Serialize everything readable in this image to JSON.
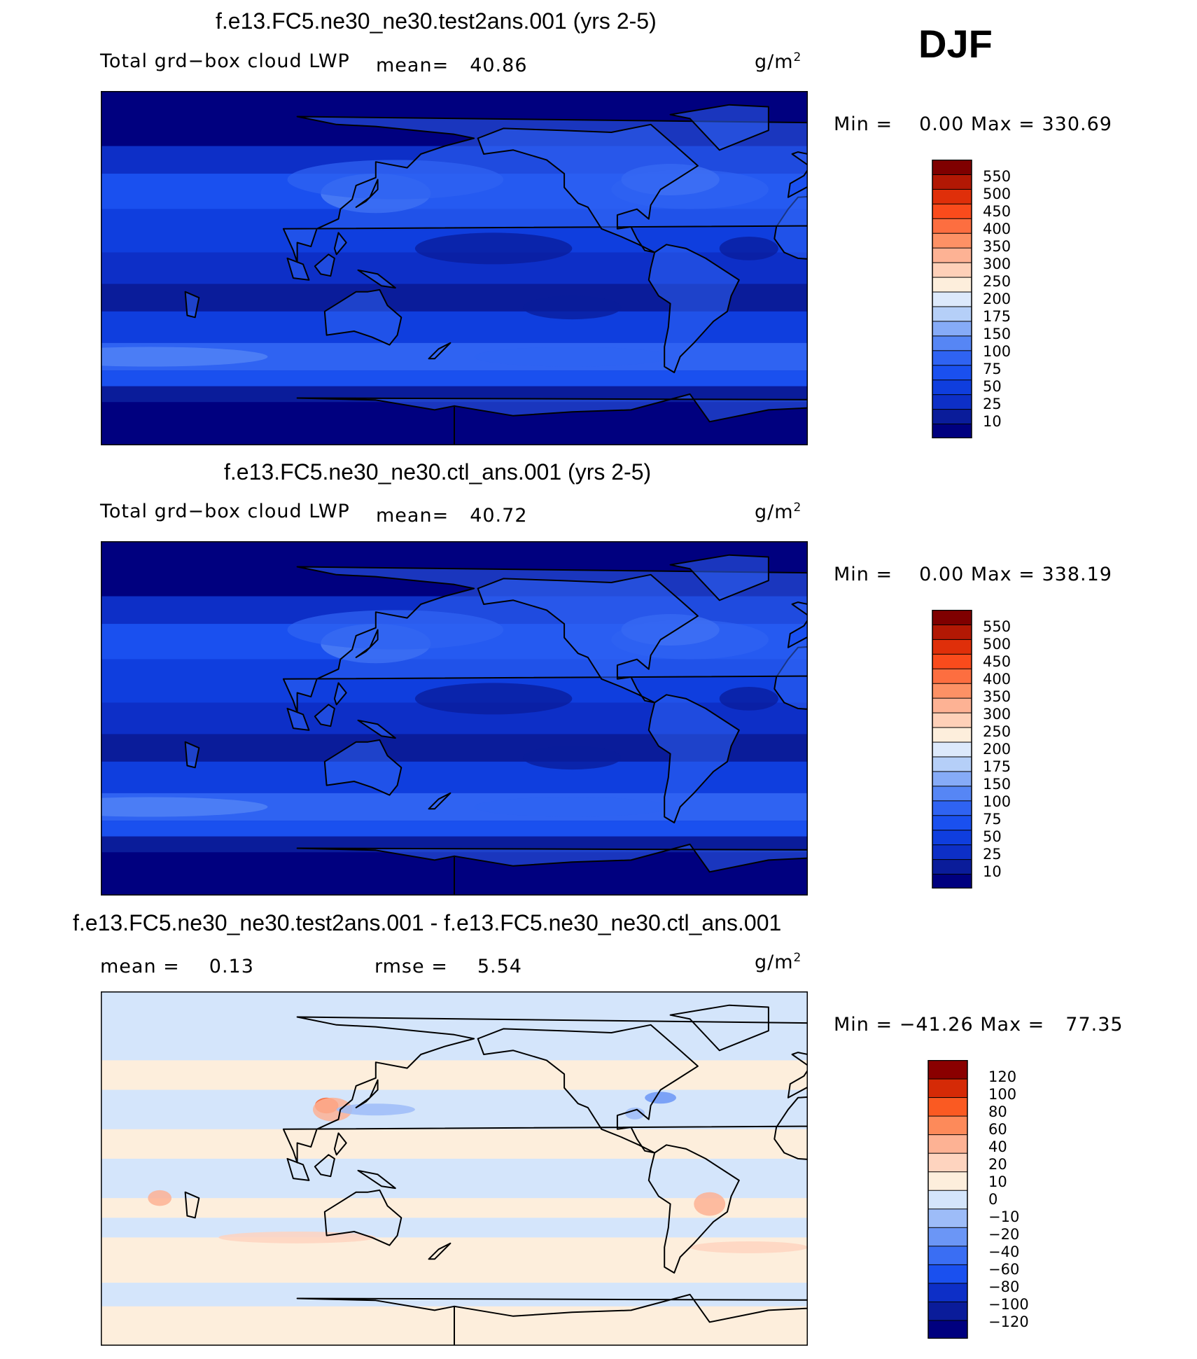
{
  "season": "DJF",
  "units_base": "g/m",
  "units_exp": "2",
  "colors": {
    "seq": [
      "#00007f",
      "#0a1c9a",
      "#0d2fc7",
      "#0f3ede",
      "#1a50ef",
      "#2f63f2",
      "#5686f5",
      "#86abf7",
      "#b5cff8",
      "#dce9fb",
      "#fdeedc",
      "#fed0b8",
      "#fdb294",
      "#fd9165",
      "#fd6e40",
      "#fa4b1c",
      "#df2f0a",
      "#b21804",
      "#7f0000"
    ],
    "diff": [
      "#00007f",
      "#0a1c9a",
      "#0d2fc7",
      "#1a50ef",
      "#3a6ef3",
      "#6b96f6",
      "#9dbcf8",
      "#d4e5fb",
      "#fdeedc",
      "#fed4bf",
      "#fdb294",
      "#fd8a5a",
      "#fa5a22",
      "#d52a06",
      "#8a0000"
    ]
  },
  "chart_data": [
    {
      "type": "heatmap",
      "title": "f.e13.FC5.ne30_ne30.test2ans.001 (yrs 2-5)",
      "variable": "Total grd−box cloud LWP",
      "mean_label": "mean=",
      "mean_value": "40.86",
      "min_label": "Min =",
      "min_value": "0.00",
      "max_label": "Max =",
      "max_value": "330.69",
      "levels": [
        "550",
        "500",
        "450",
        "400",
        "350",
        "300",
        "250",
        "200",
        "175",
        "150",
        "100",
        "75",
        "50",
        "25",
        "10"
      ]
    },
    {
      "type": "heatmap",
      "title": "f.e13.FC5.ne30_ne30.ctl_ans.001 (yrs 2-5)",
      "variable": "Total grd−box cloud LWP",
      "mean_label": "mean=",
      "mean_value": "40.72",
      "min_label": "Min =",
      "min_value": "0.00",
      "max_label": "Max =",
      "max_value": "338.19",
      "levels": [
        "550",
        "500",
        "450",
        "400",
        "350",
        "300",
        "250",
        "200",
        "175",
        "150",
        "100",
        "75",
        "50",
        "25",
        "10"
      ]
    },
    {
      "type": "heatmap",
      "title": "f.e13.FC5.ne30_ne30.test2ans.001 - f.e13.FC5.ne30_ne30.ctl_ans.001",
      "mean_label": "mean =",
      "mean_value": "0.13",
      "rmse_label": "rmse =",
      "rmse_value": "5.54",
      "min_label": "Min =",
      "min_value": "−41.26",
      "max_label": "Max =",
      "max_value": "77.35",
      "levels": [
        "120",
        "100",
        "80",
        "60",
        "40",
        "20",
        "10",
        "0",
        "−10",
        "−20",
        "−40",
        "−60",
        "−80",
        "−100",
        "−120"
      ]
    }
  ]
}
